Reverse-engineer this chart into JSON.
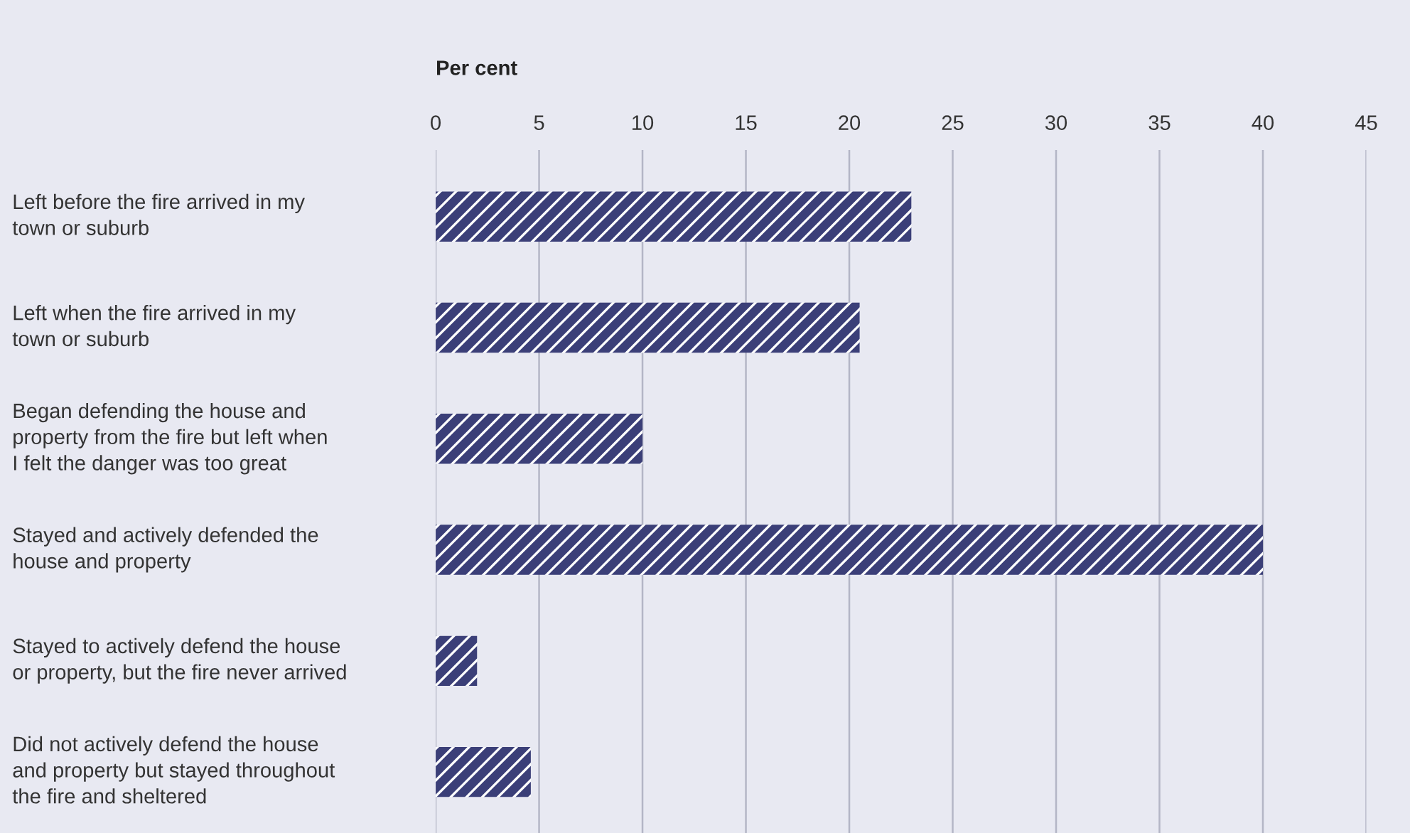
{
  "chart_data": {
    "type": "bar",
    "orientation": "horizontal",
    "xlabel": "Per cent",
    "categories": [
      "Left before the fire arrived in my\ntown or suburb",
      "Left when the fire arrived in my\ntown or suburb",
      "Began defending the house and\nproperty from the fire but left when\nI felt the danger was too great",
      "Stayed and actively defended the\nhouse and property",
      "Stayed to actively defend the house\nor property, but the fire never arrived",
      "Did not actively defend the house\nand property but stayed throughout\nthe fire and sheltered"
    ],
    "values": [
      23,
      20.5,
      10,
      40,
      2,
      4.6
    ],
    "color": "#3b3f78",
    "xlim": [
      0,
      45
    ],
    "xticks": [
      0,
      5,
      10,
      15,
      20,
      25,
      30,
      35,
      40,
      45
    ],
    "grid": "x"
  }
}
